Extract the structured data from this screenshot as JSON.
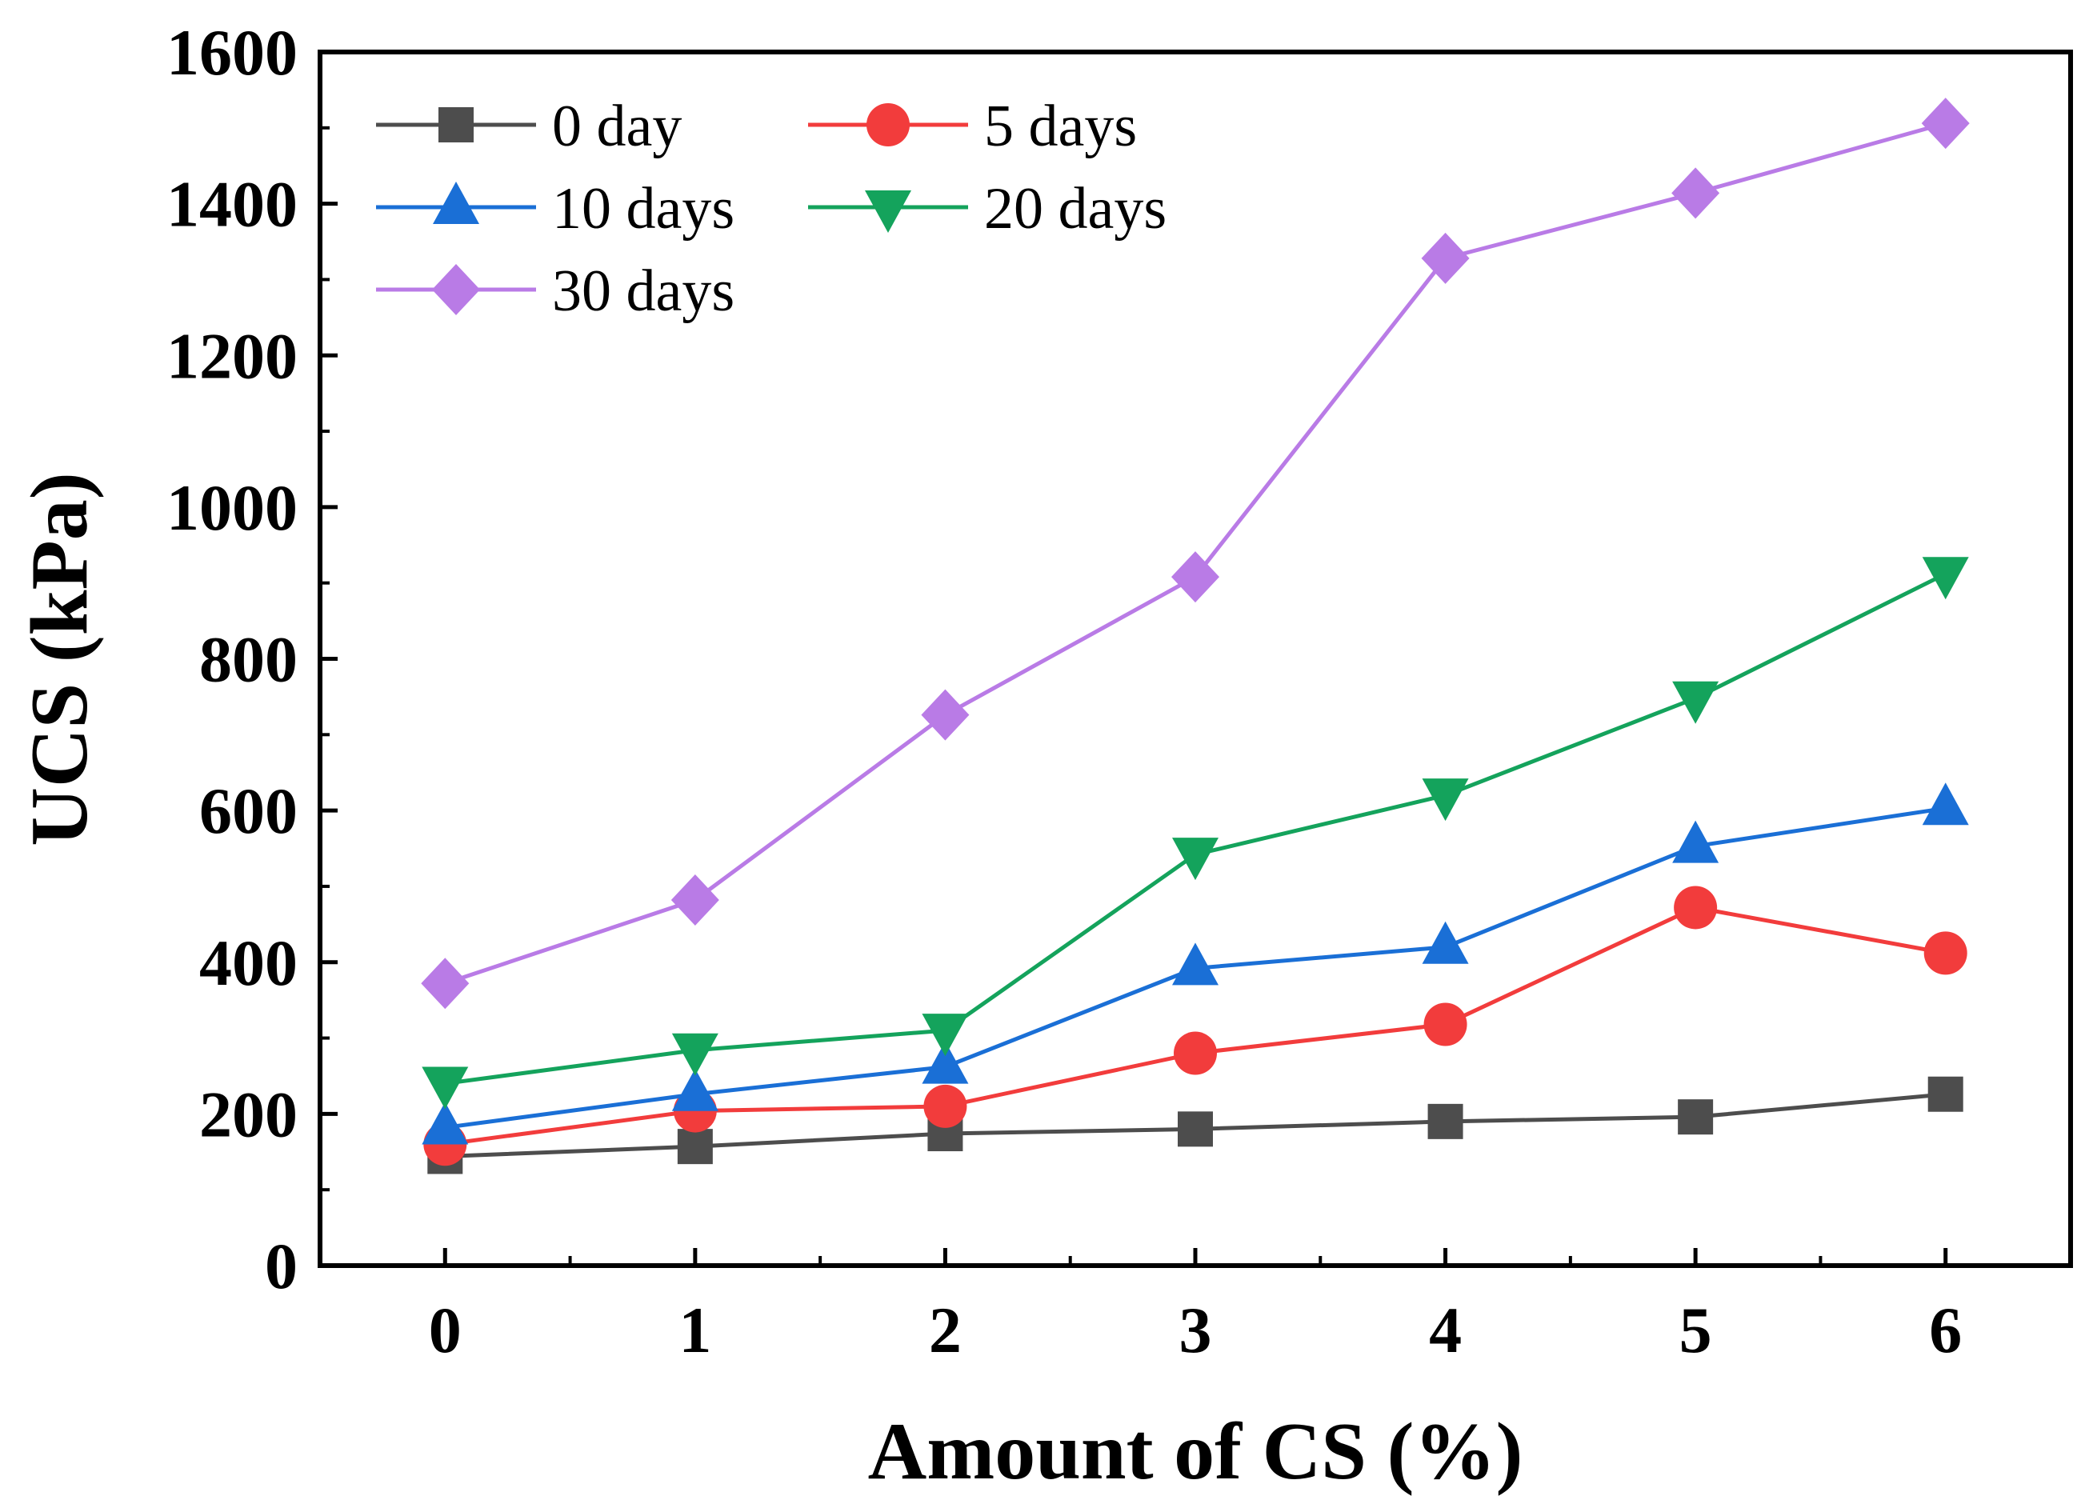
{
  "chart_data": {
    "type": "line",
    "xlabel": "Amount of CS (%)",
    "ylabel": "UCS (kPa)",
    "x": [
      0,
      1,
      2,
      3,
      4,
      5,
      6
    ],
    "xlim": [
      -0.5,
      6.5
    ],
    "ylim": [
      0,
      1600
    ],
    "xticks": [
      "0",
      "1",
      "2",
      "3",
      "4",
      "5",
      "6"
    ],
    "yticks": [
      "0",
      "200",
      "400",
      "600",
      "800",
      "1000",
      "1200",
      "1400",
      "1600"
    ],
    "grid": false,
    "legend_position": "top-left",
    "series": [
      {
        "name": "0 day",
        "marker": "square",
        "color": "#4d4d4d",
        "values": [
          144,
          157,
          174,
          180,
          190,
          196,
          226
        ]
      },
      {
        "name": "5 days",
        "marker": "circle",
        "color": "#f23c3c",
        "values": [
          160,
          204,
          210,
          280,
          318,
          472,
          412
        ]
      },
      {
        "name": "10 days",
        "marker": "triangle-up",
        "color": "#1a6fd6",
        "values": [
          182,
          226,
          262,
          392,
          420,
          553,
          603
        ]
      },
      {
        "name": "20 days",
        "marker": "triangle-down",
        "color": "#14a35c",
        "values": [
          240,
          284,
          310,
          542,
          620,
          748,
          912
        ]
      },
      {
        "name": "30 days",
        "marker": "diamond",
        "color": "#b97be6",
        "values": [
          372,
          482,
          726,
          908,
          1328,
          1414,
          1506
        ]
      }
    ]
  }
}
